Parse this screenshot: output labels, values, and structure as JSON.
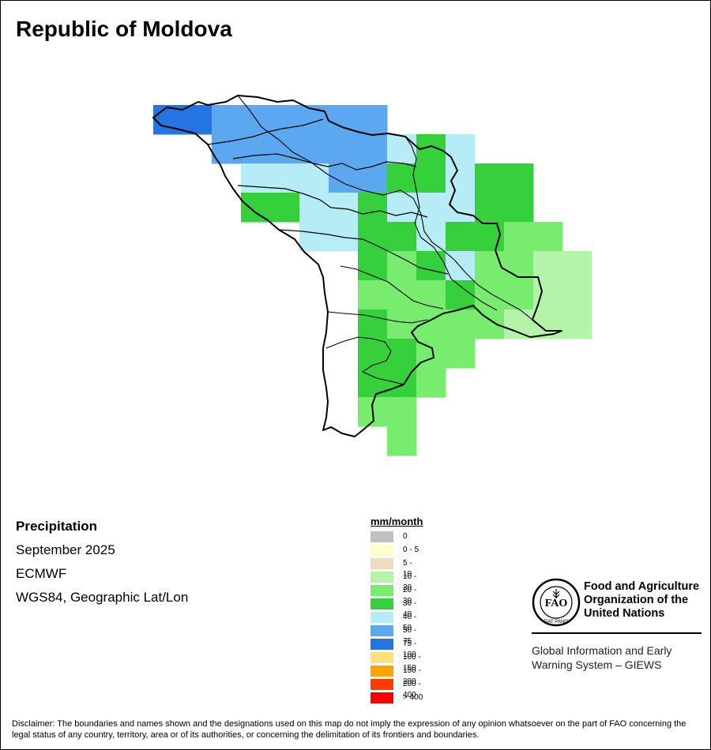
{
  "map": {
    "title": "Republic of Moldova",
    "variable": "Precipitation",
    "period": "September 2025",
    "model": "ECMWF",
    "projection": "WGS84, Geographic Lat/Lon"
  },
  "legend": {
    "title": "mm/month",
    "classes": [
      {
        "label": "0",
        "color": "#c0c0c0"
      },
      {
        "label": "0 - 5",
        "color": "#ffffc8"
      },
      {
        "label": "5 - 10",
        "color": "#ecdcc0"
      },
      {
        "label": "10 - 20",
        "color": "#b4f4a8"
      },
      {
        "label": "20 - 30",
        "color": "#78ec6e"
      },
      {
        "label": "30 - 40",
        "color": "#36d03c"
      },
      {
        "label": "40 - 50",
        "color": "#b6ecf6"
      },
      {
        "label": "50 - 75",
        "color": "#5ca8f0"
      },
      {
        "label": "75 - 100",
        "color": "#2474e4"
      },
      {
        "label": "100 - 150",
        "color": "#fce07a"
      },
      {
        "label": "150 - 200",
        "color": "#fca400"
      },
      {
        "label": "200 - 400",
        "color": "#fc3c00"
      },
      {
        "label": "> 400",
        "color": "#fc0000"
      }
    ]
  },
  "grid": {
    "comment_rows_cols": "row index 0 and column index 0 are the north-west cells of the 0.25 degree precipitation raster over Moldova; value = legend class index, -1 = no data",
    "cells": [
      [
        8,
        8,
        7,
        7,
        7,
        7,
        7,
        7,
        -1,
        -1,
        -1,
        -1,
        -1,
        -1,
        -1,
        -1,
        -1,
        -1,
        -1,
        -1,
        -1,
        -1,
        -1,
        -1,
        -1
      ],
      [
        -1,
        -1,
        7,
        7,
        7,
        7,
        7,
        7,
        6,
        5,
        6,
        -1,
        -1,
        -1,
        -1,
        -1,
        -1,
        -1,
        -1,
        -1,
        -1,
        -1,
        -1,
        -1,
        -1
      ],
      [
        -1,
        -1,
        -1,
        6,
        6,
        6,
        7,
        7,
        5,
        5,
        6,
        5,
        5,
        -1,
        -1,
        -1,
        -1,
        -1,
        -1,
        -1,
        -1,
        -1,
        -1,
        -1,
        -1
      ],
      [
        -1,
        -1,
        -1,
        5,
        5,
        6,
        6,
        5,
        6,
        6,
        6,
        5,
        5,
        -1,
        -1,
        -1,
        -1,
        -1,
        -1,
        -1,
        -1,
        -1,
        -1,
        -1,
        -1
      ],
      [
        -1,
        -1,
        -1,
        -1,
        -1,
        6,
        6,
        5,
        5,
        6,
        5,
        5,
        4,
        4,
        -1,
        -1,
        -1,
        -1,
        -1,
        -1,
        -1,
        -1,
        -1,
        -1,
        -1
      ],
      [
        -1,
        -1,
        -1,
        -1,
        -1,
        -1,
        -1,
        5,
        4,
        5,
        6,
        4,
        4,
        3,
        3,
        -1,
        -1,
        -1,
        -1,
        -1,
        -1,
        -1,
        -1,
        -1,
        -1
      ],
      [
        -1,
        -1,
        -1,
        -1,
        -1,
        -1,
        -1,
        4,
        4,
        4,
        5,
        4,
        4,
        3,
        3,
        -1,
        -1,
        -1,
        -1,
        -1,
        -1,
        -1,
        -1,
        -1,
        -1
      ],
      [
        -1,
        -1,
        -1,
        -1,
        -1,
        -1,
        -1,
        5,
        4,
        4,
        4,
        4,
        3,
        3,
        3,
        -1,
        -1,
        -1,
        -1,
        -1,
        -1,
        -1,
        -1,
        -1,
        -1
      ],
      [
        -1,
        -1,
        -1,
        -1,
        -1,
        -1,
        -1,
        5,
        5,
        4,
        4,
        -1,
        -1,
        -1,
        -1,
        -1,
        -1,
        -1,
        -1,
        -1,
        -1,
        -1,
        -1,
        -1,
        -1
      ],
      [
        -1,
        -1,
        -1,
        -1,
        -1,
        -1,
        -1,
        5,
        5,
        4,
        -1,
        -1,
        -1,
        -1,
        -1,
        -1,
        -1,
        -1,
        -1,
        -1,
        -1,
        -1,
        -1,
        -1,
        -1
      ],
      [
        -1,
        -1,
        -1,
        -1,
        -1,
        -1,
        -1,
        4,
        4,
        -1,
        -1,
        -1,
        -1,
        -1,
        -1,
        -1,
        -1,
        -1,
        -1,
        -1,
        -1,
        -1,
        -1,
        -1,
        -1
      ],
      [
        -1,
        -1,
        -1,
        -1,
        -1,
        -1,
        -1,
        -1,
        4,
        -1,
        -1,
        -1,
        -1,
        -1,
        -1,
        -1,
        -1,
        -1,
        -1,
        -1,
        -1,
        -1,
        -1,
        -1,
        -1
      ]
    ]
  },
  "branding": {
    "organization": "Food and Agriculture Organization of the United Nations",
    "logo_text": "FAO",
    "logo_motto": "FIAT PANIS",
    "system": "Global Information and Early Warning System – GIEWS"
  },
  "disclaimer": "Disclaimer: The boundaries and names shown and the designations used on this map do not imply the expression of any opinion whatsoever on the part of FAO concerning the legal status of any country, territory, area or of its authorities, or concerning the delimitation of its frontiers and boundaries."
}
